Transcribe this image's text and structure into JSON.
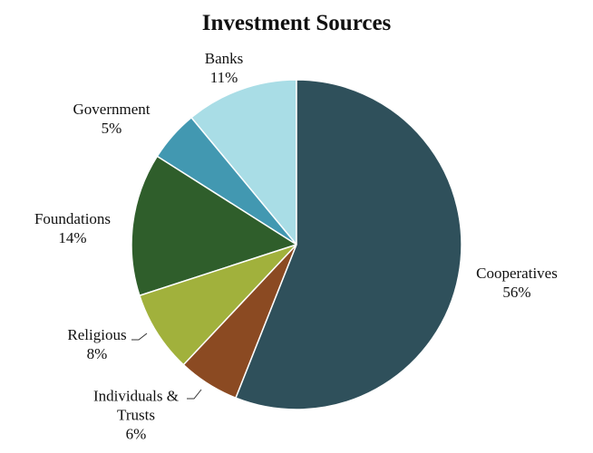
{
  "chart_data": {
    "type": "pie",
    "title": "Investment Sources",
    "categories": [
      "Cooperatives",
      "Individuals & Trusts",
      "Religious",
      "Foundations",
      "Government",
      "Banks"
    ],
    "values": [
      56,
      6,
      8,
      14,
      5,
      11
    ],
    "value_labels": [
      "56%",
      "6%",
      "8%",
      "14%",
      "5%",
      "11%"
    ],
    "colors": [
      "#2f505b",
      "#8b4a22",
      "#a1b13c",
      "#2f5e2b",
      "#4298b1",
      "#a9dde6"
    ]
  }
}
